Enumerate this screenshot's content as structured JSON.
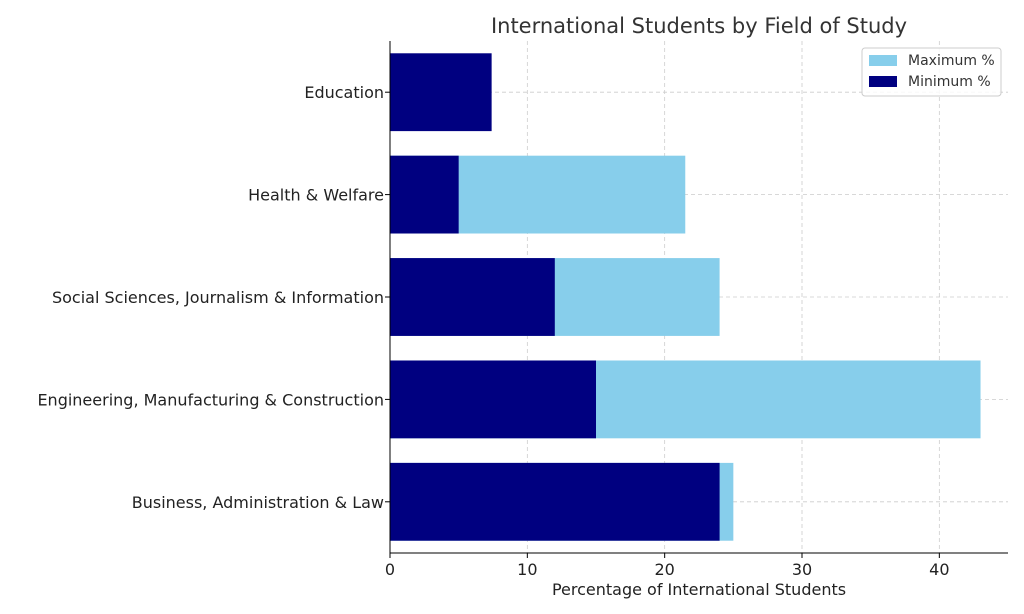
{
  "chart_data": {
    "type": "bar",
    "orientation": "horizontal",
    "title": "International Students by Field of Study",
    "xlabel": "Percentage of International Students",
    "ylabel": "",
    "xlim": [
      0,
      45
    ],
    "x_ticks": [
      0,
      10,
      20,
      30,
      40
    ],
    "grid": true,
    "legend_position": "top-right",
    "categories": [
      "Business, Administration & Law",
      "Engineering, Manufacturing & Construction",
      "Social Sciences, Journalism & Information",
      "Health & Welfare",
      "Education"
    ],
    "series": [
      {
        "name": "Maximum %",
        "color": "#87CEEB",
        "values": [
          25,
          43,
          24,
          21.5,
          null
        ]
      },
      {
        "name": "Minimum %",
        "color": "#000080",
        "values": [
          24,
          15,
          12,
          5,
          7.4
        ]
      }
    ]
  }
}
